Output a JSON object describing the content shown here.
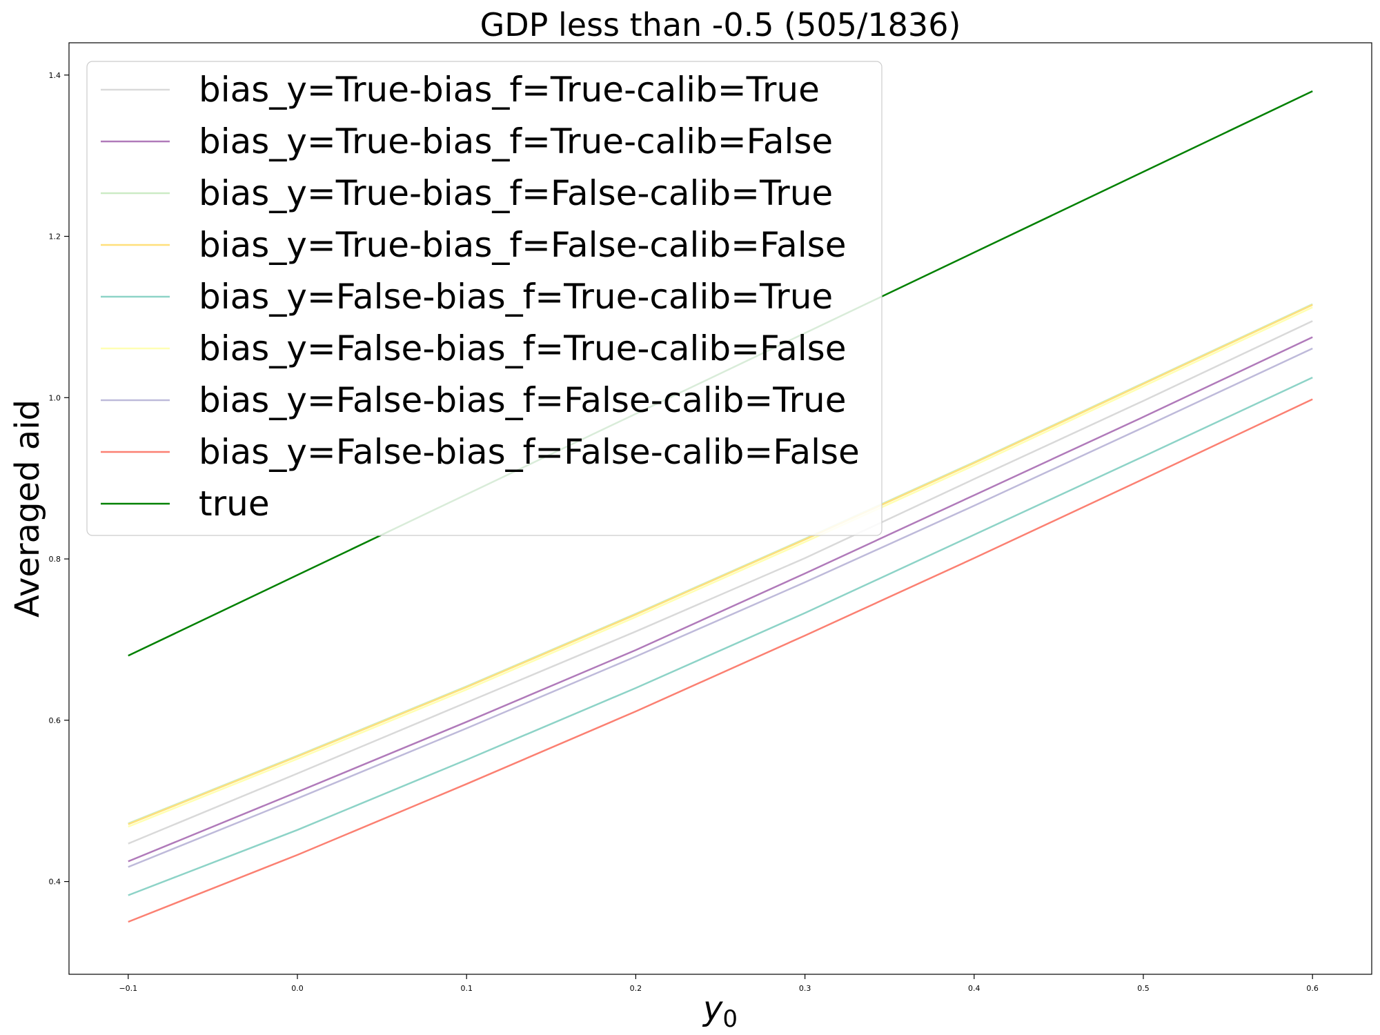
{
  "chart_data": {
    "type": "line",
    "title": "GDP less than -0.5 (505/1836)",
    "xlabel": "y0",
    "xlabel_base": "y",
    "xlabel_sub": "0",
    "ylabel": "Averaged aid",
    "xlim": [
      -0.135,
      0.635
    ],
    "ylim": [
      0.285,
      1.44
    ],
    "xticks": [
      -0.1,
      0.0,
      0.1,
      0.2,
      0.3,
      0.4,
      0.5,
      0.6
    ],
    "xtick_labels": [
      "−0.1",
      "0.0",
      "0.1",
      "0.2",
      "0.3",
      "0.4",
      "0.5",
      "0.6"
    ],
    "yticks": [
      0.4,
      0.6,
      0.8,
      1.0,
      1.2,
      1.4
    ],
    "ytick_labels": [
      "0.4",
      "0.6",
      "0.8",
      "1.0",
      "1.2",
      "1.4"
    ],
    "legend_position": "top-left",
    "grid": false,
    "x": [
      -0.1,
      0.0,
      0.1,
      0.2,
      0.3,
      0.4,
      0.5,
      0.6
    ],
    "series": [
      {
        "name": "bias_y=True-bias_f=True-calib=True",
        "color": "#d9d9d9",
        "values": [
          0.447,
          0.534,
          0.622,
          0.71,
          0.801,
          0.899,
          0.996,
          1.095
        ]
      },
      {
        "name": "bias_y=True-bias_f=True-calib=False",
        "color": "#b07aba",
        "values": [
          0.425,
          0.511,
          0.598,
          0.687,
          0.782,
          0.879,
          0.976,
          1.075
        ]
      },
      {
        "name": "bias_y=True-bias_f=False-calib=True",
        "color": "#ccebc5",
        "values": [
          0.472,
          0.556,
          0.642,
          0.732,
          0.825,
          0.92,
          1.018,
          1.116
        ]
      },
      {
        "name": "bias_y=True-bias_f=False-calib=False",
        "color": "#ffe07a",
        "values": [
          0.471,
          0.555,
          0.641,
          0.731,
          0.824,
          0.919,
          1.017,
          1.115
        ]
      },
      {
        "name": "bias_y=False-bias_f=True-calib=True",
        "color": "#8dd3c7",
        "values": [
          0.383,
          0.464,
          0.551,
          0.64,
          0.733,
          0.83,
          0.927,
          1.025
        ]
      },
      {
        "name": "bias_y=False-bias_f=True-calib=False",
        "color": "#ffffb3",
        "values": [
          0.468,
          0.552,
          0.638,
          0.728,
          0.821,
          0.916,
          1.014,
          1.112
        ]
      },
      {
        "name": "bias_y=False-bias_f=False-calib=True",
        "color": "#bebada",
        "values": [
          0.418,
          0.503,
          0.59,
          0.679,
          0.771,
          0.866,
          0.963,
          1.061
        ]
      },
      {
        "name": "bias_y=False-bias_f=False-calib=False",
        "color": "#fb8072",
        "values": [
          0.35,
          0.433,
          0.521,
          0.611,
          0.705,
          0.801,
          0.899,
          0.998
        ]
      },
      {
        "name": "true",
        "color": "#008000",
        "values": [
          0.68,
          0.78,
          0.88,
          0.98,
          1.08,
          1.18,
          1.28,
          1.38
        ]
      }
    ]
  }
}
